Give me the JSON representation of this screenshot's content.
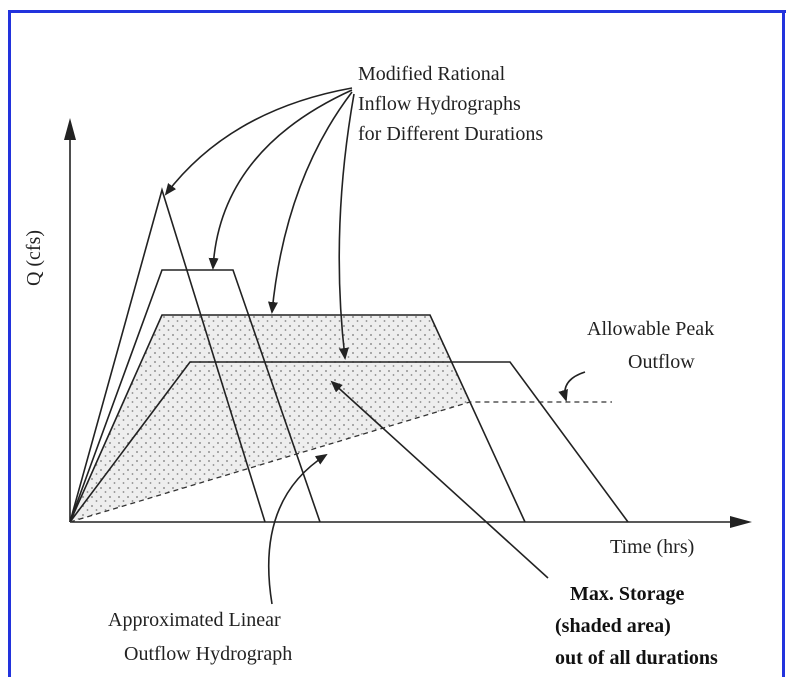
{
  "axes": {
    "y_label": "Q (cfs)",
    "x_label": "Time (hrs)"
  },
  "annotations": [
    {
      "lines": [
        "Modified Rational",
        "Inflow Hydrographs",
        "for Different Durations"
      ]
    },
    {
      "lines": [
        "Allowable Peak",
        "Outflow"
      ]
    },
    {
      "lines": [
        "Approximated Linear",
        "Outflow Hydrograph"
      ]
    },
    {
      "lines": [
        "Max. Storage",
        "(shaded area)",
        "out of all durations"
      ]
    }
  ]
}
